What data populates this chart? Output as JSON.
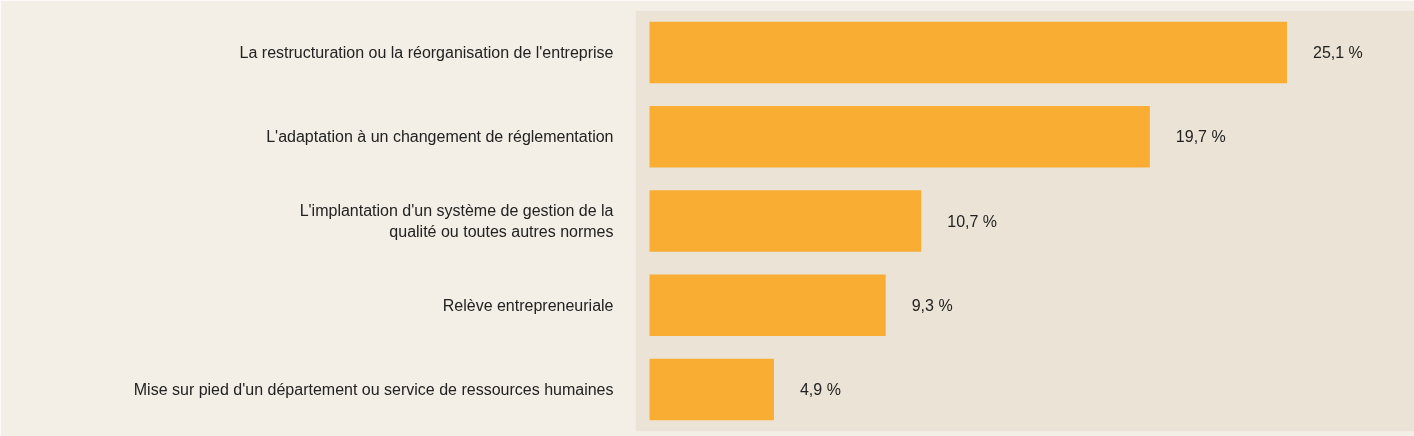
{
  "chart_data": {
    "type": "bar",
    "orientation": "horizontal",
    "categories": [
      "La restructuration ou la réorganisation de l'entreprise",
      "L'adaptation à un changement de réglementation",
      "L'implantation d'un système de gestion de la\nqualité ou toutes autres normes",
      "Relève entrepreneuriale",
      "Mise sur pied d'un département ou service de ressources humaines"
    ],
    "values": [
      25.1,
      19.7,
      10.7,
      9.3,
      4.9
    ],
    "value_labels": [
      "25,1 %",
      "19,7 %",
      "10,7 %",
      "9,3 %",
      "4,9 %"
    ],
    "color": "#f9ad33",
    "grid": false,
    "tick_labels": "y"
  }
}
